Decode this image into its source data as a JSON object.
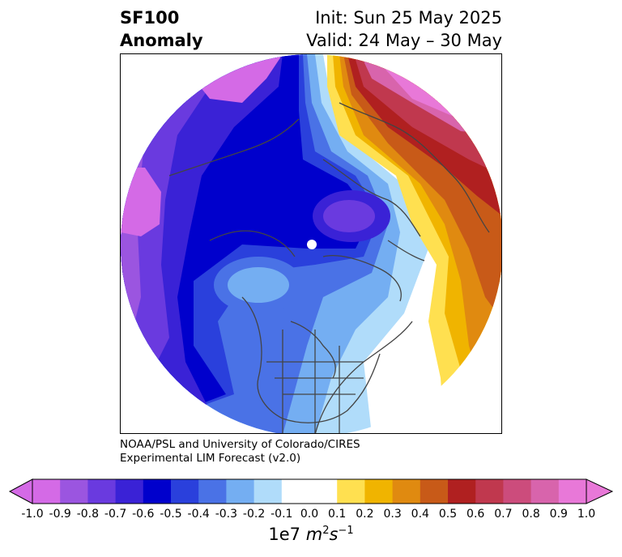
{
  "title": {
    "left_line1": "SF100",
    "left_line2": "Anomaly",
    "right_line1": "Init: Sun 25 May 2025",
    "right_line2": "Valid: 24 May – 30 May"
  },
  "credit": {
    "line1": "NOAA/PSL and University of Colorado/CIRES",
    "line2": "Experimental LIM Forecast (v2.0)"
  },
  "colorbar": {
    "ticks": [
      "-1.0",
      "-0.9",
      "-0.8",
      "-0.7",
      "-0.6",
      "-0.5",
      "-0.4",
      "-0.3",
      "-0.2",
      "-0.1",
      "0.0",
      "0.1",
      "0.2",
      "0.3",
      "0.4",
      "0.5",
      "0.6",
      "0.7",
      "0.8",
      "0.9",
      "1.0"
    ],
    "colors": [
      "#d46ae6",
      "#9b55e0",
      "#6a3adf",
      "#3a22d6",
      "#0000cc",
      "#2a40dc",
      "#4a72e6",
      "#74aef2",
      "#b0dcfa",
      "#ffffff",
      "#ffffff",
      "#ffe050",
      "#f0b400",
      "#e08a10",
      "#c85a18",
      "#b02020",
      "#c0384e",
      "#cc4c7c",
      "#d864ac",
      "#e878d8"
    ],
    "unit": "1e7 m²s⁻¹",
    "extend": "both"
  },
  "map": {
    "projection": "north-polar-stereographic",
    "colors": {
      "far_neg": "#d46ae6",
      "neg_09": "#9b55e0",
      "neg_08": "#6a3adf",
      "neg_07": "#3a22d6",
      "neg_06": "#0000cc",
      "neg_05": "#2a40dc",
      "neg_04": "#4a72e6",
      "neg_03": "#74aef2",
      "neg_02": "#b0dcfa",
      "pos_01": "#ffe050",
      "pos_02": "#f0b400",
      "pos_03": "#e08a10",
      "pos_04": "#c85a18",
      "pos_05": "#b02020",
      "pos_06": "#c0384e",
      "pos_08": "#d864ac",
      "pos_09": "#e878d8",
      "coast": "#444444"
    }
  }
}
